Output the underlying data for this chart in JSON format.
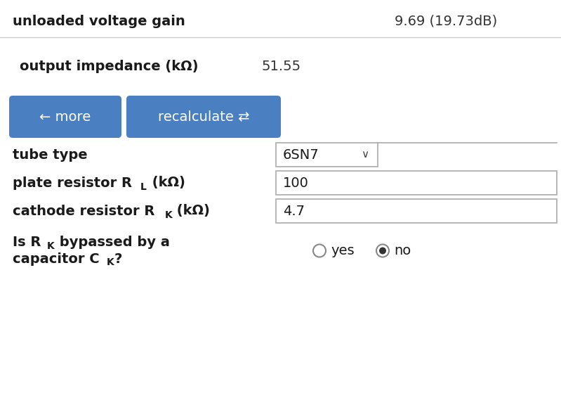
{
  "bg_color": "#ffffff",
  "divider_color": "#cccccc",
  "label_color": "#1a1a1a",
  "value_color": "#333333",
  "button_color": "#4a7fc1",
  "button_text_color": "#ffffff",
  "input_bg": "#ffffff",
  "input_border": "#aaaaaa",
  "row1_label": "unloaded voltage gain",
  "row1_value": "9.69 (19.73dB)",
  "row2_label": "output impedance (kΩ)",
  "row2_value": "51.55",
  "btn1_text": "← more",
  "btn2_text": "recalculate ⇄",
  "field1_label": "tube type",
  "field1_value": "6SN7",
  "field2_value": "100",
  "field3_value": "4.7",
  "radio_yes_label": "yes",
  "radio_no_label": "no",
  "font_size_label": 14,
  "font_size_value": 14,
  "font_size_button": 14,
  "font_size_sub": 10
}
